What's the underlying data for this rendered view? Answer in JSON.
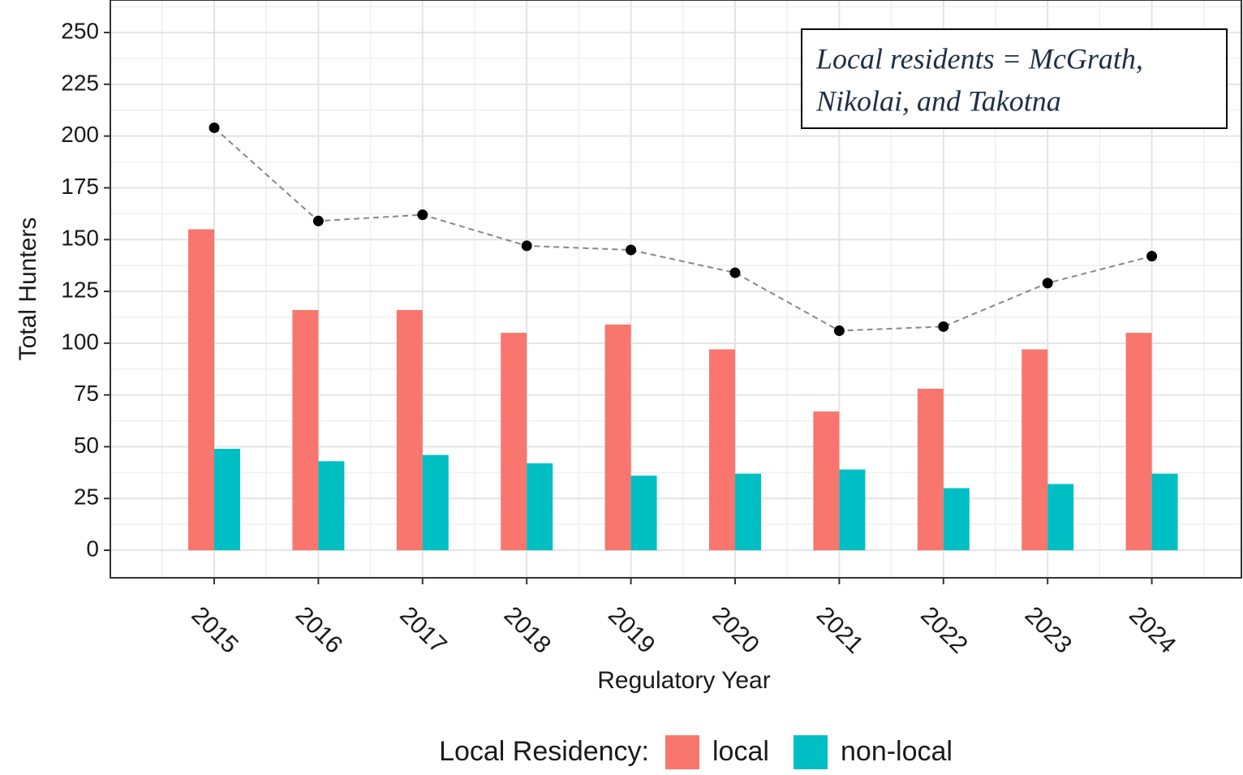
{
  "chart_data": {
    "type": "bar",
    "x_label": "Regulatory Year",
    "y_label": "Total Hunters",
    "categories": [
      "2015",
      "2016",
      "2017",
      "2018",
      "2019",
      "2020",
      "2021",
      "2022",
      "2023",
      "2024"
    ],
    "series": [
      {
        "name": "local",
        "color": "#f8766d",
        "values": [
          155,
          116,
          116,
          105,
          109,
          97,
          67,
          78,
          97,
          105
        ]
      },
      {
        "name": "non-local",
        "color": "#00bfc4",
        "values": [
          49,
          43,
          46,
          42,
          36,
          37,
          39,
          30,
          32,
          37
        ]
      }
    ],
    "total_line": {
      "color": "#000000",
      "line_color": "#888888",
      "values": [
        204,
        159,
        162,
        147,
        145,
        134,
        106,
        108,
        129,
        142
      ]
    },
    "legend_title": "Local Residency:",
    "legend_position": "bottom",
    "annotation": [
      "Local residents = McGrath,",
      "Nikolai, and Takotna"
    ],
    "ylim": [
      -13.3,
      265.7
    ],
    "yticks": [
      0,
      25,
      50,
      75,
      100,
      125,
      150,
      175,
      200,
      225,
      250
    ],
    "grid": true
  }
}
